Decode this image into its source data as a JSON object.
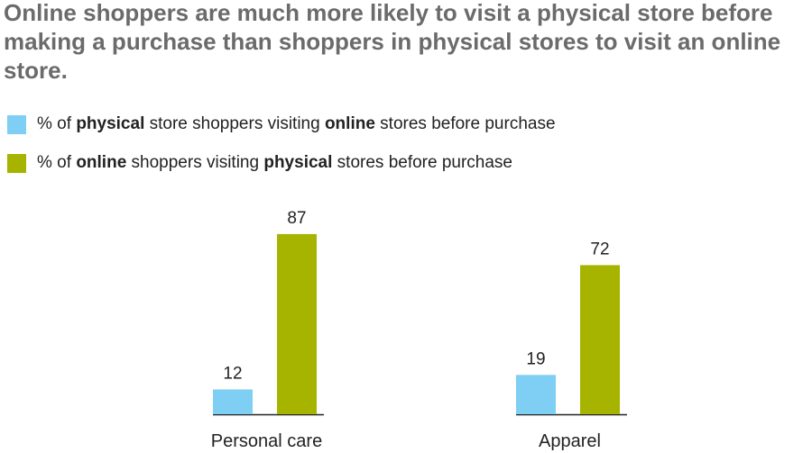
{
  "colors": {
    "physical_to_online": "#7ecff3",
    "online_to_physical": "#a6b400",
    "baseline": "#222222"
  },
  "title": "Online shoppers are much more likely to visit a physical store before making a purchase than shoppers in physical stores to visit an online store.",
  "legend": [
    {
      "pre": "% of ",
      "bold1": "physical",
      "mid": " store shoppers visiting ",
      "bold2": "online",
      "post": " stores before purchase"
    },
    {
      "pre": "% of ",
      "bold1": "online",
      "mid": " shoppers visiting ",
      "bold2": "physical",
      "post": " stores before purchase"
    }
  ],
  "chart_data": {
    "type": "bar",
    "categories": [
      "Personal care",
      "Apparel"
    ],
    "series": [
      {
        "name": "% of physical store shoppers visiting online stores before purchase",
        "values": [
          12,
          19
        ]
      },
      {
        "name": "% of online shoppers visiting physical stores before purchase",
        "values": [
          87,
          72
        ]
      }
    ],
    "ylim": [
      0,
      100
    ],
    "grid": false,
    "legend_position": "top-left"
  }
}
